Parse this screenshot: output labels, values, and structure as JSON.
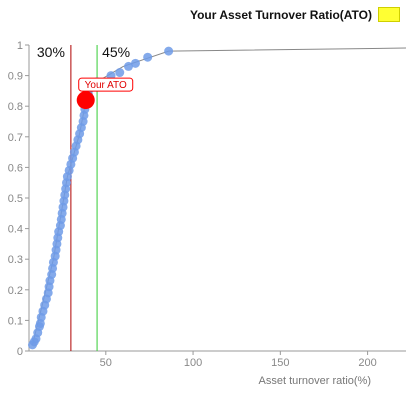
{
  "legend": {
    "label": "Your Asset Turnover Ratio(ATO)",
    "color": "#ffff33"
  },
  "chart_data": {
    "type": "scatter",
    "xlabel": "Asset turnover ratio(%)",
    "ylabel": "",
    "xlim": [
      6,
      222
    ],
    "ylim": [
      0,
      1
    ],
    "x_ticks": [
      "50",
      "100",
      "150",
      "200"
    ],
    "y_ticks": [
      "0",
      "0.1",
      "0.2",
      "0.3",
      "0.4",
      "0.5",
      "0.6",
      "0.7",
      "0.8",
      "0.9",
      "1"
    ],
    "series": [
      {
        "color": "#6f9be8",
        "points": [
          [
            8,
            0.02
          ],
          [
            9,
            0.03
          ],
          [
            10,
            0.04
          ],
          [
            11,
            0.06
          ],
          [
            12,
            0.08
          ],
          [
            12.5,
            0.09
          ],
          [
            13,
            0.11
          ],
          [
            14,
            0.13
          ],
          [
            15,
            0.15
          ],
          [
            16,
            0.17
          ],
          [
            17,
            0.19
          ],
          [
            17.5,
            0.21
          ],
          [
            18,
            0.23
          ],
          [
            19,
            0.25
          ],
          [
            19.5,
            0.27
          ],
          [
            20,
            0.29
          ],
          [
            21,
            0.31
          ],
          [
            21.5,
            0.33
          ],
          [
            22,
            0.35
          ],
          [
            22.5,
            0.37
          ],
          [
            23,
            0.39
          ],
          [
            24,
            0.41
          ],
          [
            24.5,
            0.43
          ],
          [
            25,
            0.45
          ],
          [
            25.5,
            0.47
          ],
          [
            26,
            0.49
          ],
          [
            26.5,
            0.51
          ],
          [
            27,
            0.53
          ],
          [
            27.5,
            0.55
          ],
          [
            28,
            0.57
          ],
          [
            29,
            0.59
          ],
          [
            30,
            0.61
          ],
          [
            31,
            0.63
          ],
          [
            32,
            0.65
          ],
          [
            33,
            0.67
          ],
          [
            34,
            0.69
          ],
          [
            35,
            0.71
          ],
          [
            36,
            0.73
          ],
          [
            37,
            0.75
          ],
          [
            37.5,
            0.77
          ],
          [
            38,
            0.79
          ],
          [
            38.5,
            0.81
          ],
          [
            39,
            0.82
          ],
          [
            40,
            0.84
          ],
          [
            41,
            0.86
          ],
          [
            43,
            0.87
          ],
          [
            45,
            0.88
          ],
          [
            53,
            0.9
          ],
          [
            58,
            0.91
          ],
          [
            63,
            0.93
          ],
          [
            67,
            0.94
          ],
          [
            74,
            0.96
          ],
          [
            86,
            0.98
          ]
        ],
        "trend": [
          [
            8,
            0.02
          ],
          [
            20,
            0.3
          ],
          [
            28,
            0.57
          ],
          [
            35,
            0.71
          ],
          [
            38,
            0.8
          ],
          [
            45,
            0.88
          ],
          [
            60,
            0.93
          ],
          [
            86,
            0.98
          ],
          [
            222,
            0.99
          ]
        ],
        "trend_color": "#888888"
      }
    ],
    "reference_lines": [
      {
        "x": 30,
        "label": "30%",
        "color": "#b00000"
      },
      {
        "x": 45,
        "label": "45%",
        "color": "#33cc33"
      }
    ],
    "highlight": {
      "x": 38.5,
      "y": 0.82,
      "label": "Your ATO",
      "color": "#ff0000"
    },
    "grid": false,
    "legend_position": "top-right"
  }
}
